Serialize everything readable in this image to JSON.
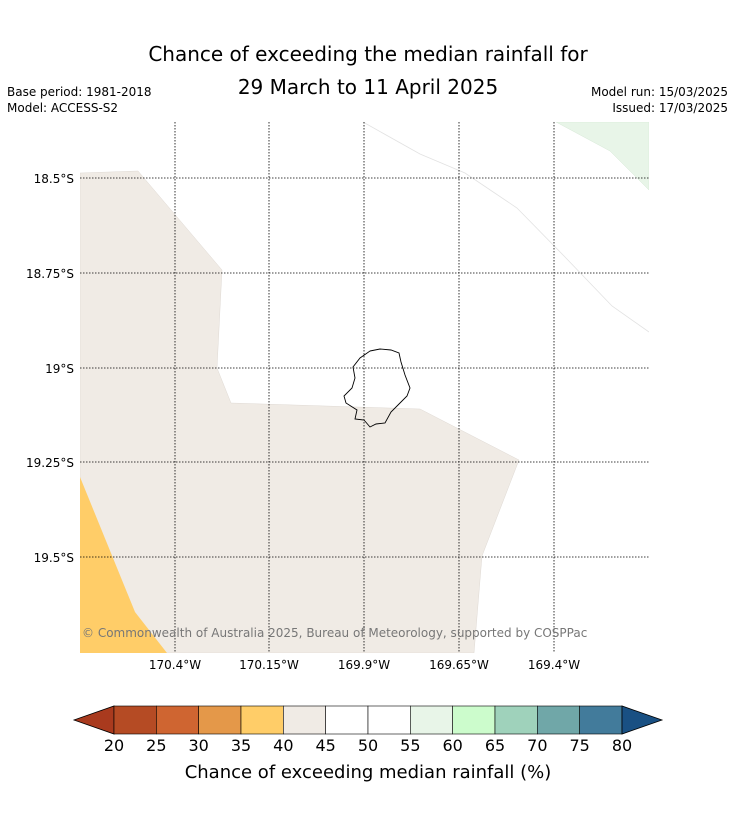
{
  "title": {
    "line1": "Chance of exceeding the median rainfall for",
    "line2": "29 March to 11 April 2025"
  },
  "meta": {
    "base_period": "Base period: 1981-2018",
    "model": "Model: ACCESS-S2",
    "model_run": "Model run: 15/03/2025",
    "issued": "Issued: 17/03/2025"
  },
  "map": {
    "lat_labels": [
      "18.5°S",
      "18.75°S",
      "19°S",
      "19.25°S",
      "19.5°S"
    ],
    "lon_labels": [
      "170.4°W",
      "170.15°W",
      "169.9°W",
      "169.65°W",
      "169.4°W"
    ],
    "copyright": "© Commonwealth of Australia 2025, Bureau of Meteorology, supported by COSPPac",
    "region_colors": {
      "40-45": "#f0ebe5",
      "35-40": "#ffcd68",
      "55-60": "#e8f5e8",
      "45-55": "#ffffff"
    }
  },
  "colorbar": {
    "ticks": [
      "20",
      "25",
      "30",
      "35",
      "40",
      "45",
      "50",
      "55",
      "60",
      "65",
      "70",
      "75",
      "80"
    ],
    "colors": [
      "#a93a1e",
      "#b54b24",
      "#cf6531",
      "#e49849",
      "#ffcd68",
      "#f0ebe5",
      "#ffffff",
      "#ffffff",
      "#e8f5e8",
      "#ccfccc",
      "#9fd2bb",
      "#70a7a8",
      "#427b9b",
      "#195083"
    ],
    "label": "Chance of exceeding median rainfall (%)"
  }
}
